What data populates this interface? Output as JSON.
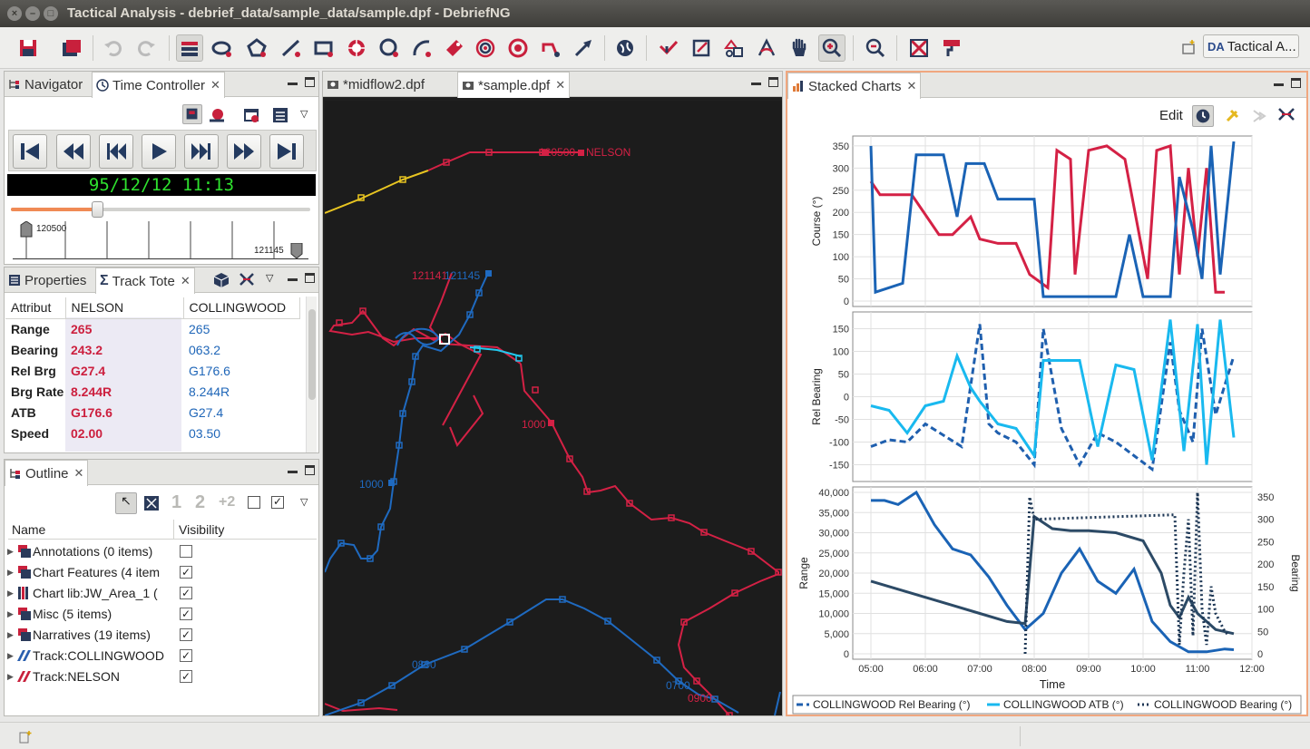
{
  "window": {
    "title": "Tactical Analysis - debrief_data/sample_data/sample.dpf - DebriefNG"
  },
  "toolbar": {
    "perspective_label": "Tactical A...",
    "perspective_logo": "DA"
  },
  "left_top": {
    "tabs": [
      {
        "label": "Navigator"
      },
      {
        "label": "Time Controller"
      }
    ],
    "clock": "95/12/12 11:13",
    "ruler_start": "120500",
    "ruler_end": "121145"
  },
  "left_mid": {
    "tabs": [
      {
        "label": "Properties"
      },
      {
        "label": "Track Tote"
      }
    ],
    "headers": [
      "Attribut",
      "NELSON",
      "COLLINGWOOD"
    ],
    "rows": [
      {
        "attr": "Range",
        "nelson": "265",
        "colling": "265"
      },
      {
        "attr": "Bearing",
        "nelson": "243.2",
        "colling": "063.2"
      },
      {
        "attr": "Rel Brg",
        "nelson": "G27.4",
        "colling": "G176.6"
      },
      {
        "attr": "Brg Rate",
        "nelson": "8.244R",
        "colling": "8.244R"
      },
      {
        "attr": "ATB",
        "nelson": "G176.6",
        "colling": "G27.4"
      },
      {
        "attr": "Speed",
        "nelson": "02.00",
        "colling": "03.50"
      }
    ]
  },
  "outline": {
    "tab": "Outline",
    "col_name": "Name",
    "col_vis": "Visibility",
    "items": [
      {
        "label": "Annotations (0 items)",
        "checked": ""
      },
      {
        "label": "Chart Features (4 item",
        "checked": "✓"
      },
      {
        "label": "Chart lib:JW_Area_1 (",
        "checked": "✓"
      },
      {
        "label": "Misc (5 items)",
        "checked": "✓"
      },
      {
        "label": "Narratives (19 items)",
        "checked": "✓"
      },
      {
        "label": "Track:COLLINGWOOD",
        "checked": "✓"
      },
      {
        "label": "Track:NELSON",
        "checked": "✓"
      }
    ]
  },
  "editor": {
    "tabs": [
      {
        "label": "*midflow2.dpf"
      },
      {
        "label": "*sample.dpf"
      }
    ],
    "labels": {
      "nelson_start": "120500",
      "nelson_name": "NELSON",
      "cluster_a": "121141",
      "cluster_b": "121145",
      "l1000_red": "1000",
      "l1000_blue": "1000",
      "l0800": "0800",
      "l0700": "0700",
      "l0900": "0900"
    }
  },
  "stacked": {
    "tab": "Stacked Charts",
    "edit_label": "Edit",
    "legend": [
      "COLLINGWOOD Rel Bearing (°)",
      "COLLINGWOOD ATB (°)",
      "COLLINGWOOD Bearing (°)"
    ]
  },
  "chart_data": [
    {
      "type": "line",
      "ylabel": "Course (°)",
      "ylim": [
        0,
        360
      ],
      "yticks": [
        "350",
        "300",
        "250",
        "200",
        "150",
        "100",
        "50",
        "0"
      ],
      "series": [
        {
          "name": "NELSON Course",
          "color": "#d42145",
          "x": [
            "05:00",
            "05:10",
            "05:45",
            "06:15",
            "06:30",
            "06:50",
            "07:00",
            "07:20",
            "07:40",
            "07:55",
            "08:15",
            "08:25",
            "08:40",
            "08:45",
            "09:00",
            "09:20",
            "09:40",
            "10:05",
            "10:15",
            "10:30",
            "10:40",
            "10:50",
            "11:00",
            "11:10",
            "11:20",
            "11:30"
          ],
          "y": [
            270,
            240,
            240,
            150,
            150,
            190,
            140,
            130,
            130,
            60,
            30,
            340,
            320,
            60,
            340,
            350,
            320,
            50,
            340,
            350,
            60,
            300,
            100,
            300,
            20,
            20
          ]
        },
        {
          "name": "COLLINGWOOD Course",
          "color": "#1a63b5",
          "x": [
            "05:00",
            "05:05",
            "05:35",
            "05:50",
            "06:20",
            "06:35",
            "06:45",
            "07:05",
            "07:20",
            "07:40",
            "08:00",
            "08:10",
            "08:30",
            "08:50",
            "09:10",
            "09:30",
            "09:45",
            "10:00",
            "10:15",
            "10:30",
            "10:40",
            "10:55",
            "11:05",
            "11:15",
            "11:25",
            "11:40"
          ],
          "y": [
            350,
            20,
            40,
            330,
            330,
            190,
            310,
            310,
            230,
            230,
            230,
            10,
            10,
            10,
            10,
            10,
            150,
            10,
            10,
            10,
            280,
            160,
            50,
            350,
            60,
            360
          ]
        }
      ]
    },
    {
      "type": "line",
      "ylabel": "Rel Bearing",
      "ylim": [
        -175,
        175
      ],
      "yticks": [
        "150",
        "100",
        "50",
        "0",
        "-50",
        "-100",
        "-150"
      ],
      "series": [
        {
          "name": "COLLINGWOOD Rel Bearing (°)",
          "color": "#1f5fae",
          "style": "dash",
          "x": [
            "05:00",
            "05:20",
            "05:40",
            "06:00",
            "06:20",
            "06:40",
            "07:00",
            "07:10",
            "07:20",
            "07:40",
            "08:00",
            "08:10",
            "08:30",
            "08:50",
            "09:10",
            "09:30",
            "09:50",
            "10:10",
            "10:30",
            "10:40",
            "10:55",
            "11:05",
            "11:20",
            "11:40"
          ],
          "y": [
            -110,
            -95,
            -100,
            -60,
            -85,
            -110,
            160,
            -60,
            -80,
            -100,
            -150,
            150,
            -70,
            -150,
            -80,
            -100,
            -130,
            -160,
            120,
            -30,
            -100,
            150,
            -40,
            90
          ]
        },
        {
          "name": "COLLINGWOOD ATB (°)",
          "color": "#19b9ef",
          "style": "solid",
          "x": [
            "05:00",
            "05:20",
            "05:40",
            "06:00",
            "06:20",
            "06:35",
            "06:50",
            "07:00",
            "07:20",
            "07:40",
            "08:00",
            "08:10",
            "08:30",
            "08:50",
            "09:10",
            "09:30",
            "09:50",
            "10:10",
            "10:30",
            "10:45",
            "11:00",
            "11:10",
            "11:25",
            "11:40"
          ],
          "y": [
            -20,
            -30,
            -80,
            -20,
            -10,
            90,
            20,
            -10,
            -60,
            -70,
            -130,
            80,
            80,
            80,
            -110,
            70,
            60,
            -140,
            170,
            -120,
            160,
            -150,
            170,
            -90
          ]
        }
      ]
    },
    {
      "type": "line",
      "xlabel": "Time",
      "ylabel": "Range",
      "y2label": "Bearing",
      "ylim": [
        0,
        40000
      ],
      "y2lim": [
        0,
        360
      ],
      "xticks": [
        "05:00",
        "06:00",
        "07:00",
        "08:00",
        "09:00",
        "10:00",
        "11:00",
        "12:00"
      ],
      "yticks": [
        "40,000",
        "35,000",
        "30,000",
        "25,000",
        "20,000",
        "15,000",
        "10,000",
        "5,000",
        "0"
      ],
      "y2ticks": [
        "350",
        "300",
        "250",
        "200",
        "150",
        "100",
        "50",
        "0"
      ],
      "series": [
        {
          "name": "COLLINGWOOD Range",
          "color": "#1a63b5",
          "x": [
            "05:00",
            "05:15",
            "05:30",
            "05:50",
            "06:10",
            "06:30",
            "06:50",
            "07:10",
            "07:30",
            "07:50",
            "08:10",
            "08:30",
            "08:50",
            "09:10",
            "09:30",
            "09:50",
            "10:10",
            "10:30",
            "10:50",
            "11:10",
            "11:30",
            "11:40"
          ],
          "y": [
            38000,
            38000,
            37000,
            40000,
            32000,
            26000,
            24500,
            19000,
            12000,
            6000,
            10000,
            20000,
            26000,
            18000,
            15000,
            21000,
            8000,
            3000,
            500,
            500,
            1200,
            1000
          ]
        },
        {
          "name": "NELSON Range",
          "color": "#2c4a66",
          "x": [
            "05:00",
            "05:30",
            "06:00",
            "06:30",
            "07:00",
            "07:30",
            "07:50",
            "08:00",
            "08:20",
            "08:40",
            "09:00",
            "09:30",
            "10:00",
            "10:10",
            "10:20",
            "10:30",
            "10:40",
            "10:50",
            "11:00",
            "11:20",
            "11:40"
          ],
          "y": [
            18000,
            16000,
            14000,
            12000,
            10000,
            8000,
            7500,
            34000,
            31000,
            30500,
            30500,
            30000,
            28000,
            24000,
            20000,
            12000,
            9000,
            14000,
            10000,
            6000,
            5000
          ]
        },
        {
          "name": "COLLINGWOOD Bearing (°)",
          "color": "#1c3654",
          "style": "dot",
          "x": [
            "07:50",
            "07:55",
            "08:00",
            "10:35",
            "10:40",
            "10:45",
            "10:50",
            "10:55",
            "11:00",
            "11:05",
            "11:10",
            "11:15",
            "11:20",
            "11:30",
            "11:35"
          ],
          "y": [
            0,
            350,
            300,
            310,
            20,
            180,
            300,
            40,
            360,
            100,
            20,
            150,
            90,
            50,
            40
          ]
        }
      ]
    }
  ]
}
